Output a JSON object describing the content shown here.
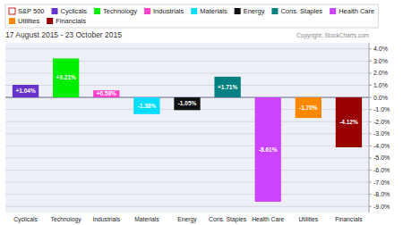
{
  "chart_data": {
    "type": "bar",
    "title": "17 August 2015 - 23 October 2015",
    "annotations": [
      "Copyright, StockCharts.com"
    ],
    "categories": [
      "Cyclicals",
      "Technology",
      "Industrials",
      "Materials",
      "Energy",
      "Cons. Staples",
      "Health Care",
      "Utilities",
      "Financials"
    ],
    "series": [
      {
        "name": "S&P 500",
        "color": "#cc2222",
        "values": [
          null,
          null,
          null,
          null,
          null,
          null,
          null,
          null,
          null
        ]
      },
      {
        "values": [
          1.04,
          3.21,
          0.58,
          -1.38,
          -1.05,
          1.71,
          -8.61,
          -1.7,
          -4.12
        ],
        "value_labels": [
          "+1.04%",
          "+3.21%",
          "+0.58%",
          "-1.38%",
          "-1.05%",
          "+1.71%",
          "-8.61%",
          "-1.70%",
          "-4.12%"
        ],
        "colors": [
          "#6633cc",
          "#00ee00",
          "#ff44cc",
          "#00ddff",
          "#111111",
          "#008080",
          "#cc44ff",
          "#ff8800",
          "#990000"
        ]
      }
    ],
    "ylim": [
      -9.5,
      4.5
    ],
    "yticks": [
      {
        "value": -9.0,
        "label": "-9.0%"
      },
      {
        "value": -8.0,
        "label": "-8.0%"
      },
      {
        "value": -7.0,
        "label": "-7.0%"
      },
      {
        "value": -6.0,
        "label": "-6.0%"
      },
      {
        "value": -5.0,
        "label": "-5.0%"
      },
      {
        "value": -4.0,
        "label": "-4.0%"
      },
      {
        "value": -3.0,
        "label": "-3.0%"
      },
      {
        "value": -2.0,
        "label": "-2.0%"
      },
      {
        "value": -1.0,
        "label": "-1.0%"
      },
      {
        "value": 0.0,
        "label": "0.0%"
      },
      {
        "value": 1.0,
        "label": "1.0%"
      },
      {
        "value": 2.0,
        "label": "2.0%"
      },
      {
        "value": 3.0,
        "label": "3.0%"
      },
      {
        "value": 4.0,
        "label": "4.0%"
      }
    ],
    "grid": true,
    "legend": "top",
    "data_labels": true
  }
}
